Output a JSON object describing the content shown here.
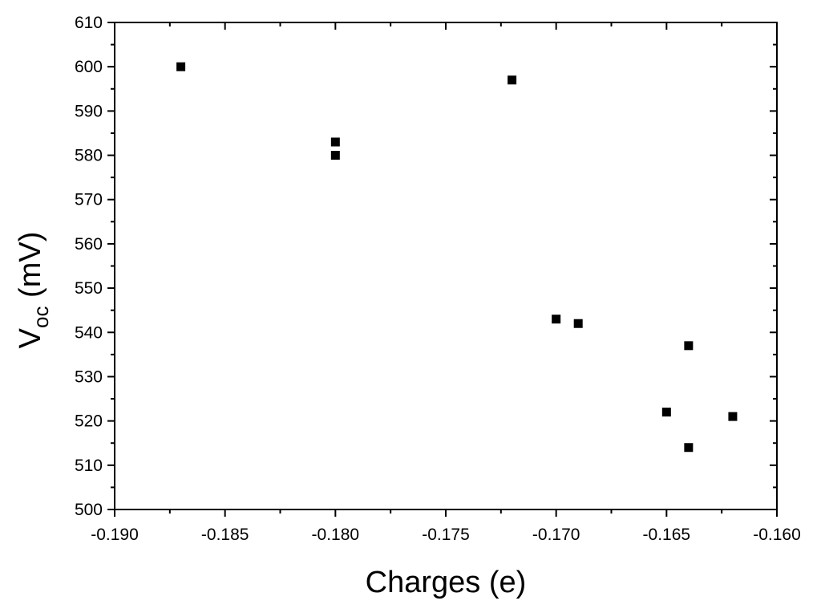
{
  "chart_data": {
    "type": "scatter",
    "title": "",
    "xlabel": "Charges (e)",
    "ylabel": {
      "main": "V",
      "subscript": "oc",
      "suffix": " (mV)"
    },
    "xlim": [
      -0.19,
      -0.16
    ],
    "ylim": [
      500,
      610
    ],
    "xticks": [
      -0.19,
      -0.185,
      -0.18,
      -0.175,
      -0.17,
      -0.165,
      -0.16
    ],
    "xtick_labels": [
      "-0.190",
      "-0.185",
      "-0.180",
      "-0.175",
      "-0.170",
      "-0.165",
      "-0.160"
    ],
    "yticks": [
      500,
      510,
      520,
      530,
      540,
      550,
      560,
      570,
      580,
      590,
      600,
      610
    ],
    "ytick_labels": [
      "500",
      "510",
      "520",
      "530",
      "540",
      "550",
      "560",
      "570",
      "580",
      "590",
      "600",
      "610"
    ],
    "grid": false,
    "marker": "square",
    "marker_color": "#000000",
    "series": [
      {
        "points": [
          {
            "x": -0.187,
            "y": 600
          },
          {
            "x": -0.18,
            "y": 583
          },
          {
            "x": -0.18,
            "y": 580
          },
          {
            "x": -0.172,
            "y": 597
          },
          {
            "x": -0.17,
            "y": 543
          },
          {
            "x": -0.169,
            "y": 542
          },
          {
            "x": -0.164,
            "y": 537
          },
          {
            "x": -0.165,
            "y": 522
          },
          {
            "x": -0.164,
            "y": 514
          },
          {
            "x": -0.162,
            "y": 521
          }
        ]
      }
    ]
  }
}
